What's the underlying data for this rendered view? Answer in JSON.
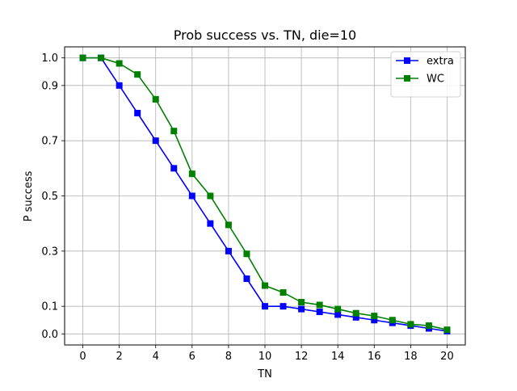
{
  "chart_data": {
    "type": "line",
    "title": "Prob success vs. TN, die=10",
    "xlabel": "TN",
    "ylabel": "P success",
    "xlim": [
      -1,
      21
    ],
    "ylim": [
      -0.04,
      1.04
    ],
    "xticks": [
      "0",
      "2",
      "4",
      "6",
      "8",
      "10",
      "12",
      "14",
      "16",
      "18",
      "20"
    ],
    "yticks": [
      "0.0",
      "0.1",
      "0.3",
      "0.5",
      "0.7",
      "0.9",
      "1.0"
    ],
    "grid": true,
    "legend_position": "top-right",
    "x": [
      0,
      1,
      2,
      3,
      4,
      5,
      6,
      7,
      8,
      9,
      10,
      11,
      12,
      13,
      14,
      15,
      16,
      17,
      18,
      19,
      20
    ],
    "series": [
      {
        "name": "extra",
        "color": "#0000ff",
        "marker": "square",
        "values": [
          1.0,
          1.0,
          0.9,
          0.8,
          0.7,
          0.6,
          0.5,
          0.4,
          0.3,
          0.2,
          0.1,
          0.1,
          0.09,
          0.08,
          0.07,
          0.06,
          0.05,
          0.04,
          0.03,
          0.02,
          0.01
        ]
      },
      {
        "name": "WC",
        "color": "#008000",
        "marker": "square",
        "values": [
          1.0,
          1.0,
          0.98,
          0.94,
          0.85,
          0.735,
          0.58,
          0.5,
          0.395,
          0.29,
          0.175,
          0.15,
          0.115,
          0.105,
          0.09,
          0.075,
          0.065,
          0.05,
          0.035,
          0.03,
          0.015
        ]
      }
    ]
  }
}
